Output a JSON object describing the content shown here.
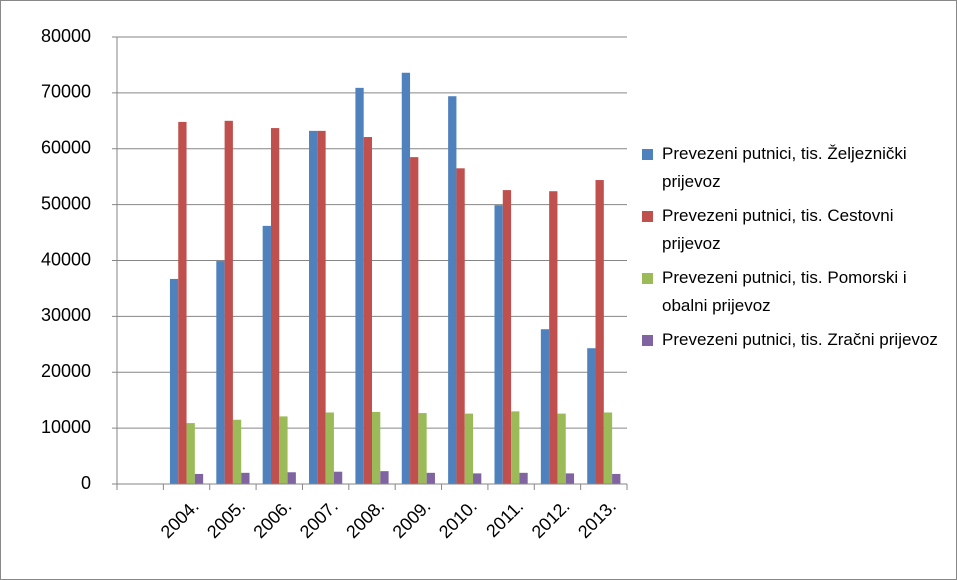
{
  "chart_data": {
    "type": "bar",
    "categories": [
      null,
      "2004.",
      "2005.",
      "2006.",
      "2007.",
      "2008.",
      "2009.",
      "2010.",
      "2011.",
      "2012.",
      "2013."
    ],
    "series": [
      {
        "name": "Prevezeni putnici, tis. Željeznički prijevoz",
        "color": "#4f81bd",
        "values": [
          null,
          36700,
          39900,
          46200,
          63200,
          70900,
          73600,
          69400,
          49900,
          27700,
          24300
        ]
      },
      {
        "name": "Prevezeni putnici, tis. Cestovni prijevoz",
        "color": "#c0504d",
        "values": [
          null,
          64800,
          65000,
          63700,
          63200,
          62100,
          58500,
          56500,
          52600,
          52400,
          54400
        ]
      },
      {
        "name": "Prevezeni putnici, tis. Pomorski i obalni prijevoz",
        "color": "#9bbb59",
        "values": [
          null,
          10900,
          11500,
          12100,
          12800,
          12900,
          12700,
          12600,
          13000,
          12600,
          12800
        ]
      },
      {
        "name": "Prevezeni putnici, tis. Zračni prijevoz",
        "color": "#8064a2",
        "values": [
          null,
          1800,
          2000,
          2100,
          2200,
          2300,
          2000,
          1900,
          2000,
          1900,
          1800
        ]
      }
    ],
    "ylim": [
      0,
      80000
    ],
    "yticks": [
      0,
      10000,
      20000,
      30000,
      40000,
      50000,
      60000,
      70000,
      80000
    ],
    "grid": true,
    "legend": "right"
  }
}
